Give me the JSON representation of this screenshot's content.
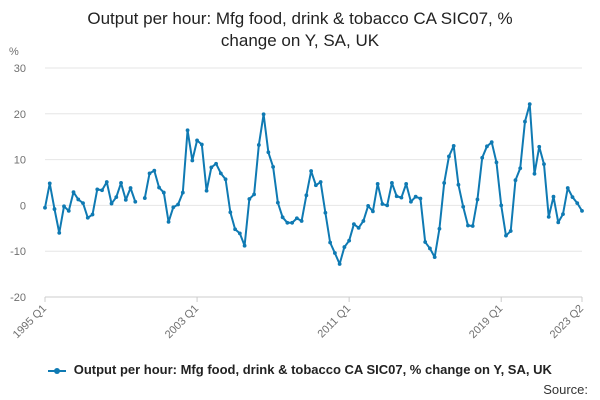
{
  "chart_data": {
    "type": "line",
    "title_line1": "Output per hour: Mfg food, drink & tobacco CA SIC07, %",
    "title_line2": "change on Y, SA, UK",
    "ylabel": "%",
    "ylim": [
      -20,
      30
    ],
    "yticks": [
      30,
      20,
      10,
      0,
      -10,
      -20
    ],
    "xticks": [
      "1995 Q1",
      "2003 Q1",
      "2011 Q1",
      "2019 Q1",
      "2023 Q2"
    ],
    "grid": true,
    "legend_position": "bottom",
    "colors": {
      "series": "#0f7ab3",
      "grid": "#e6e6e6",
      "axis": "#cccccc"
    },
    "series": [
      {
        "name": "Output per hour: Mfg food, drink & tobacco CA SIC07, % change on Y, SA, UK",
        "x": [
          "1995 Q1",
          "1995 Q2",
          "1995 Q3",
          "1995 Q4",
          "1996 Q1",
          "1996 Q2",
          "1996 Q3",
          "1996 Q4",
          "1997 Q1",
          "1997 Q2",
          "1997 Q3",
          "1997 Q4",
          "1998 Q1",
          "1998 Q2",
          "1998 Q3",
          "1998 Q4",
          "1999 Q1",
          "1999 Q2",
          "1999 Q3",
          "1999 Q4",
          "2000 Q1",
          "2000 Q2",
          "2000 Q3",
          "2000 Q4",
          "2001 Q1",
          "2001 Q2",
          "2001 Q3",
          "2001 Q4",
          "2002 Q1",
          "2002 Q2",
          "2002 Q3",
          "2002 Q4",
          "2003 Q1",
          "2003 Q2",
          "2003 Q3",
          "2003 Q4",
          "2004 Q1",
          "2004 Q2",
          "2004 Q3",
          "2004 Q4",
          "2005 Q1",
          "2005 Q2",
          "2005 Q3",
          "2005 Q4",
          "2006 Q1",
          "2006 Q2",
          "2006 Q3",
          "2006 Q4",
          "2007 Q1",
          "2007 Q2",
          "2007 Q3",
          "2007 Q4",
          "2008 Q1",
          "2008 Q2",
          "2008 Q3",
          "2008 Q4",
          "2009 Q1",
          "2009 Q2",
          "2009 Q3",
          "2009 Q4",
          "2010 Q1",
          "2010 Q2",
          "2010 Q3",
          "2010 Q4",
          "2011 Q1",
          "2011 Q2",
          "2011 Q3",
          "2011 Q4",
          "2012 Q1",
          "2012 Q2",
          "2012 Q3",
          "2012 Q4",
          "2013 Q1",
          "2013 Q2",
          "2013 Q3",
          "2013 Q4",
          "2014 Q1",
          "2014 Q2",
          "2014 Q3",
          "2014 Q4",
          "2015 Q1",
          "2015 Q2",
          "2015 Q3",
          "2015 Q4",
          "2016 Q1",
          "2016 Q2",
          "2016 Q3",
          "2016 Q4",
          "2017 Q1",
          "2017 Q2",
          "2017 Q3",
          "2017 Q4",
          "2018 Q1",
          "2018 Q2",
          "2018 Q3",
          "2018 Q4",
          "2019 Q1",
          "2019 Q2",
          "2019 Q3",
          "2019 Q4",
          "2020 Q1",
          "2020 Q2",
          "2020 Q3",
          "2020 Q4",
          "2021 Q1",
          "2021 Q2",
          "2021 Q3",
          "2021 Q4",
          "2022 Q1",
          "2022 Q2",
          "2022 Q3",
          "2022 Q4",
          "2023 Q1",
          "2023 Q2"
        ],
        "values": [
          -0.5,
          4.8,
          -0.8,
          -6.0,
          -0.2,
          -1.2,
          2.9,
          1.3,
          0.5,
          -2.7,
          -2.0,
          3.5,
          3.3,
          5.1,
          0.4,
          1.8,
          4.9,
          1.2,
          3.8,
          0.8,
          null,
          1.6,
          7.0,
          7.6,
          3.9,
          2.8,
          -3.6,
          -0.4,
          0.2,
          2.8,
          16.4,
          9.8,
          14.2,
          13.3,
          3.2,
          8.3,
          9.1,
          7.0,
          5.7,
          -1.5,
          -5.2,
          -6.1,
          -8.8,
          1.4,
          2.4,
          13.2,
          19.9,
          11.6,
          8.4,
          0.6,
          -2.6,
          -3.8,
          -3.8,
          -2.8,
          -3.4,
          2.2,
          7.5,
          4.4,
          5.1,
          -1.6,
          -8.1,
          -10.4,
          -12.8,
          -9.1,
          -7.7,
          -4.1,
          -4.9,
          -3.4,
          -0.1,
          -1.3,
          4.7,
          0.3,
          0.0,
          4.9,
          2.0,
          1.7,
          4.7,
          0.8,
          1.9,
          1.5,
          -8.0,
          -9.4,
          -11.3,
          -5.1,
          4.9,
          10.7,
          13.0,
          4.5,
          -0.3,
          -4.4,
          -4.5,
          1.3,
          10.4,
          12.9,
          13.8,
          9.4,
          0.0,
          -6.6,
          -5.6,
          5.5,
          8.1,
          18.3,
          22.1,
          6.9,
          12.8,
          9.0,
          -2.5,
          1.9,
          -3.7,
          -1.9,
          3.8,
          1.8,
          0.5,
          -1.2
        ]
      }
    ]
  },
  "legend": {
    "label": "Output per hour: Mfg food, drink & tobacco CA SIC07, % change on Y, SA, UK"
  },
  "source": {
    "label": "Source:"
  }
}
